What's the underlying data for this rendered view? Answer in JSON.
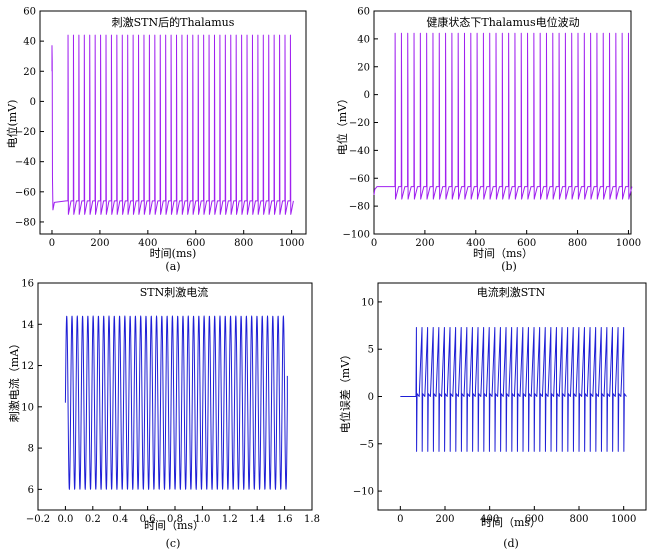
{
  "chart_data": [
    {
      "id": "a",
      "type": "line",
      "title": "刺激STN后的Thalamus",
      "xlabel": "时间(ms)",
      "ylabel": "电位(mV)",
      "caption": "(a)",
      "color": "#a020f0",
      "xlim": [
        -50,
        1060
      ],
      "ylim": [
        -88,
        60
      ],
      "xticks": [
        0,
        200,
        400,
        600,
        800,
        1000
      ],
      "yticks": [
        -80,
        -60,
        -40,
        -20,
        0,
        20,
        40,
        60
      ],
      "series": [
        {
          "baseline": -66,
          "trough": -75,
          "early_spike": {
            "t": 0,
            "peak": 37,
            "min": -72
          },
          "spikes": {
            "start": 67,
            "end": 995,
            "count": 42,
            "peak": 44,
            "min": -75
          }
        }
      ]
    },
    {
      "id": "b",
      "type": "line",
      "title": "健康状态下Thalamus电位波动",
      "xlabel": "时间（ms）",
      "ylabel": "电位（mV）",
      "caption": "(b)",
      "color": "#a020f0",
      "xlim": [
        0,
        1010
      ],
      "ylim": [
        -100,
        60
      ],
      "xticks": [
        0,
        200,
        400,
        600,
        800,
        1000
      ],
      "yticks": [
        -100,
        -80,
        -60,
        -40,
        -20,
        0,
        20,
        40,
        60
      ],
      "series": [
        {
          "baseline": -66,
          "trough": -75,
          "start_dip": -72,
          "spikes": {
            "start": 83,
            "end": 1000,
            "count": 38,
            "peak": 44,
            "min": -75
          }
        }
      ]
    },
    {
      "id": "c",
      "type": "line",
      "title": "STN刺激电流",
      "xlabel": "时间（ms）",
      "ylabel": "刺激电流（mA）",
      "caption": "(c)",
      "color": "#1f1fd6",
      "xlim": [
        -0.2,
        1.8
      ],
      "ylim": [
        5,
        16
      ],
      "xticks": [
        -0.2,
        0.0,
        0.2,
        0.4,
        0.6,
        0.8,
        1.0,
        1.2,
        1.4,
        1.6,
        1.8
      ],
      "yticks": [
        6,
        8,
        10,
        12,
        14,
        16
      ],
      "series": [
        {
          "t_start": 0.0,
          "t_end": 1.62,
          "cycles": 42,
          "max": 14.4,
          "min": 6.0,
          "start_value": 10.2,
          "end_value": 11.5
        }
      ]
    },
    {
      "id": "d",
      "type": "line",
      "title": "电流刺激STN",
      "xlabel": "时间（ms）",
      "ylabel": "电位误差（mV）",
      "caption": "(d)",
      "color": "#1f1fd6",
      "xlim": [
        -100,
        1100
      ],
      "ylim": [
        -12,
        12
      ],
      "xticks": [
        0,
        200,
        400,
        600,
        800,
        1000
      ],
      "yticks": [
        -10,
        -5,
        0,
        5,
        10
      ],
      "series": [
        {
          "flat_start": 0,
          "spike_start": 72,
          "t_end": 1000,
          "count": 38,
          "max": 7.3,
          "min": -5.8
        }
      ]
    }
  ]
}
